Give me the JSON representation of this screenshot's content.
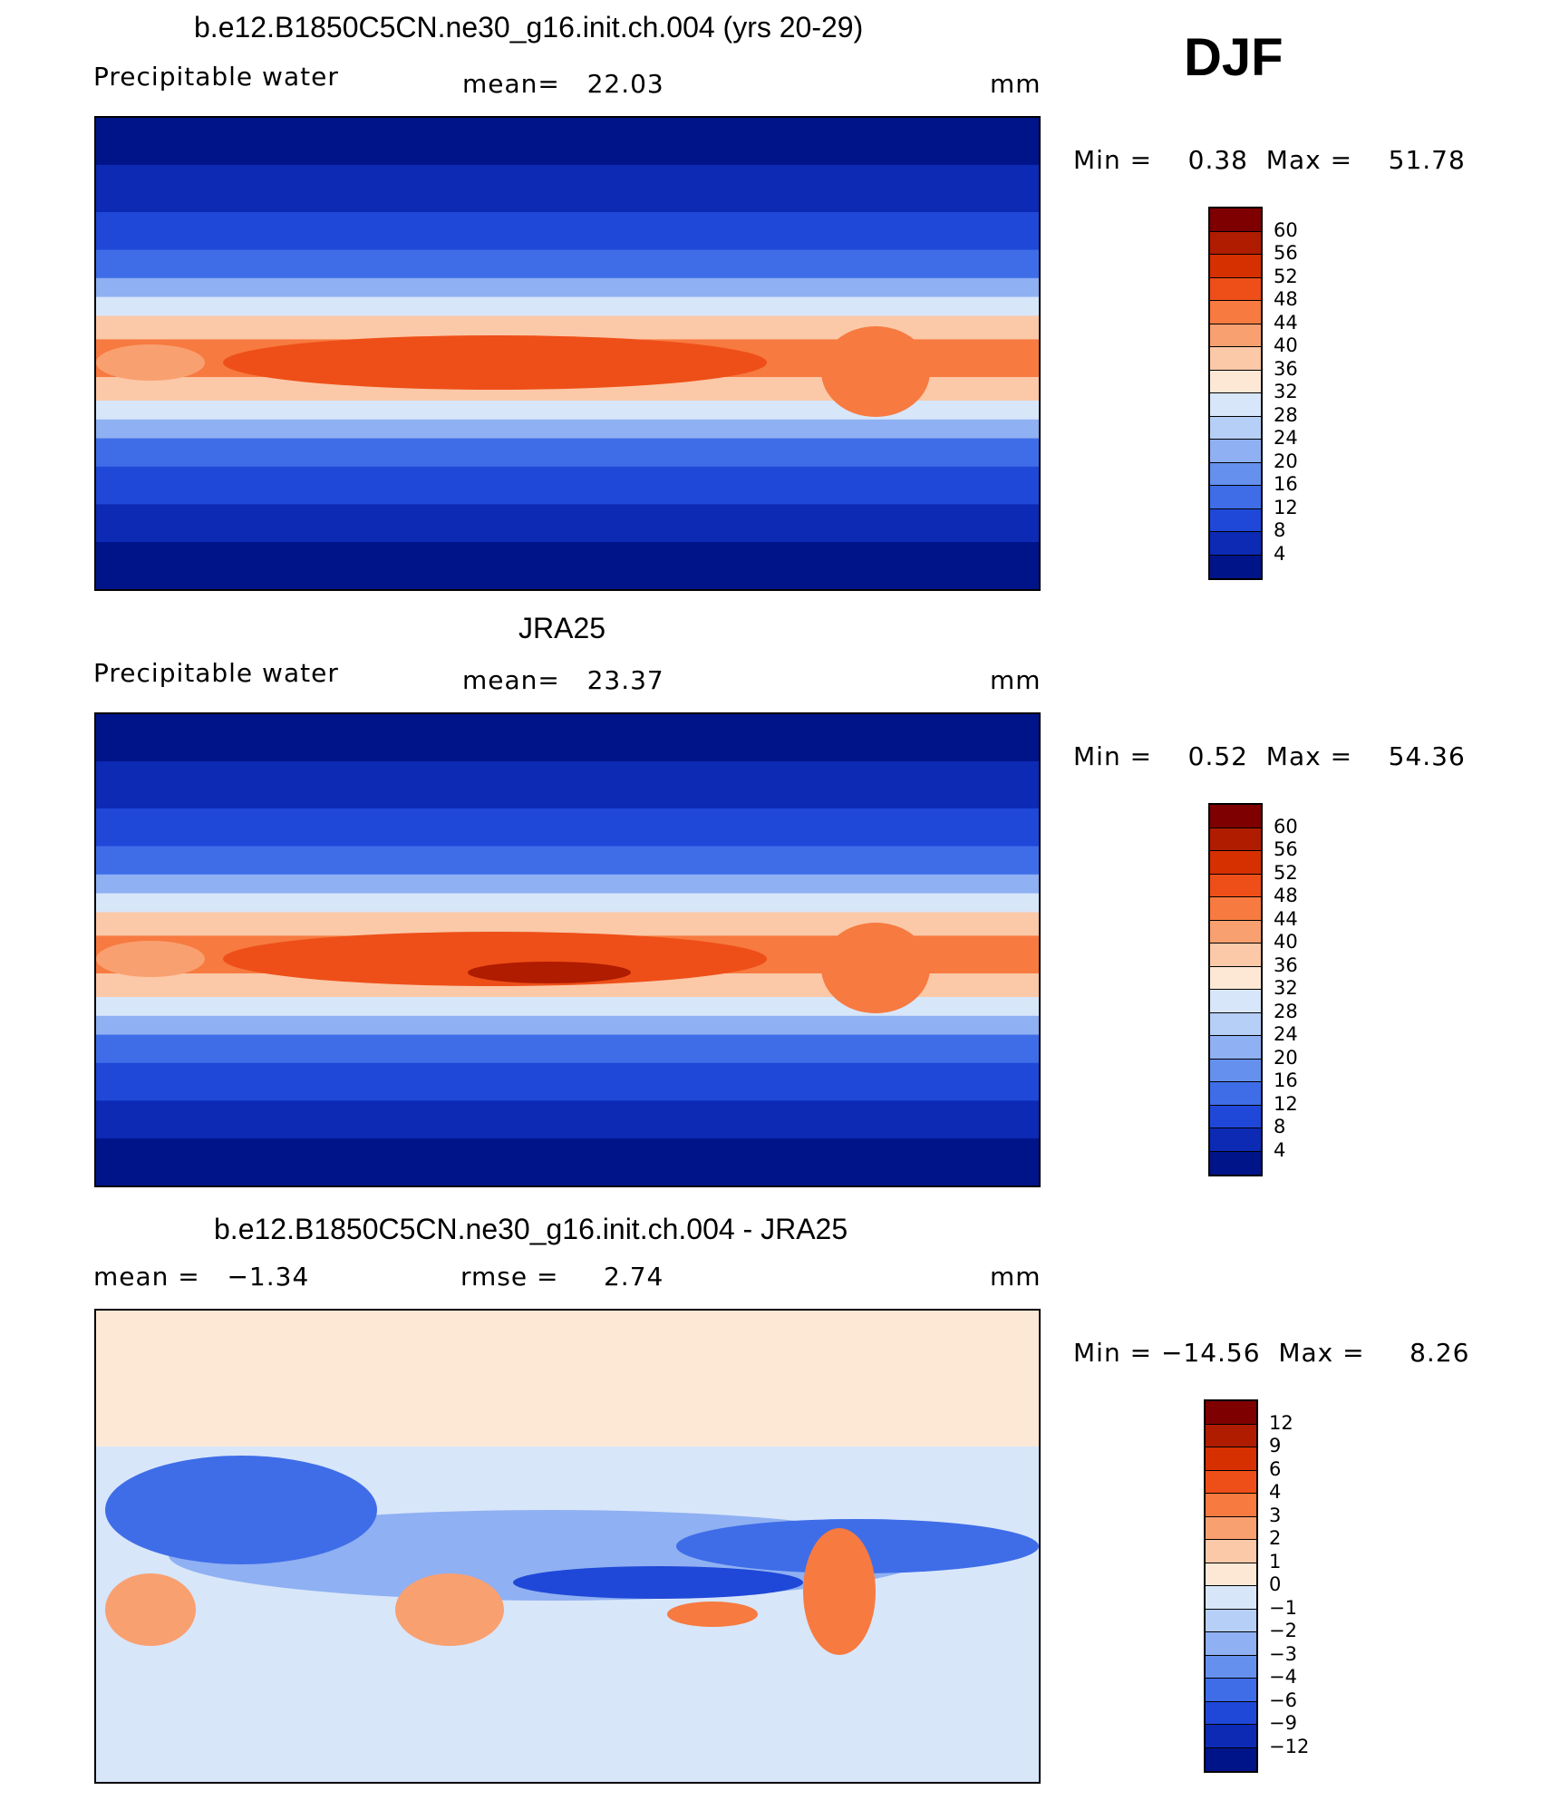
{
  "season": "DJF",
  "panels": [
    {
      "title": "b.e12.B1850C5CN.ne30_g16.init.ch.004 (yrs 20-29)",
      "variable": "Precipitable water",
      "stat": "mean=   22.03",
      "units": "mm",
      "minmax": "Min =    0.38  Max =    51.78",
      "kind": "model"
    },
    {
      "title": "JRA25",
      "variable": "Precipitable water",
      "stat": "mean=   23.37",
      "units": "mm",
      "minmax": "Min =    0.52  Max =    54.36",
      "kind": "obs"
    },
    {
      "title": "b.e12.B1850C5CN.ne30_g16.init.ch.004 - JRA25",
      "variable": "mean =   −1.34",
      "stat": "rmse =     2.74",
      "units": "mm",
      "minmax": "Min = −14.56  Max =     8.26",
      "kind": "diff"
    }
  ],
  "colorbars": {
    "abs": {
      "labels": [
        "60",
        "56",
        "52",
        "48",
        "44",
        "40",
        "36",
        "32",
        "28",
        "24",
        "20",
        "16",
        "12",
        "8",
        "4"
      ],
      "colors": [
        "#7f0000",
        "#b01c00",
        "#d63000",
        "#ee4f18",
        "#f77a40",
        "#f9a070",
        "#fbc8a8",
        "#fde8d6",
        "#d8e6fa",
        "#b6cff6",
        "#8fb0f2",
        "#6590ee",
        "#3f6de8",
        "#1f48d8",
        "#0c2ab4",
        "#00148a"
      ]
    },
    "diff": {
      "labels": [
        "12",
        "9",
        "6",
        "4",
        "3",
        "2",
        "1",
        "0",
        "−1",
        "−2",
        "−3",
        "−4",
        "−6",
        "−9",
        "−12"
      ],
      "colors": [
        "#7f0000",
        "#b01c00",
        "#d63000",
        "#ee4f18",
        "#f77a40",
        "#f9a070",
        "#fbc8a8",
        "#fde8d6",
        "#d8e6fa",
        "#b6cff6",
        "#8fb0f2",
        "#6590ee",
        "#3f6de8",
        "#1f48d8",
        "#0c2ab4",
        "#00148a"
      ]
    }
  }
}
